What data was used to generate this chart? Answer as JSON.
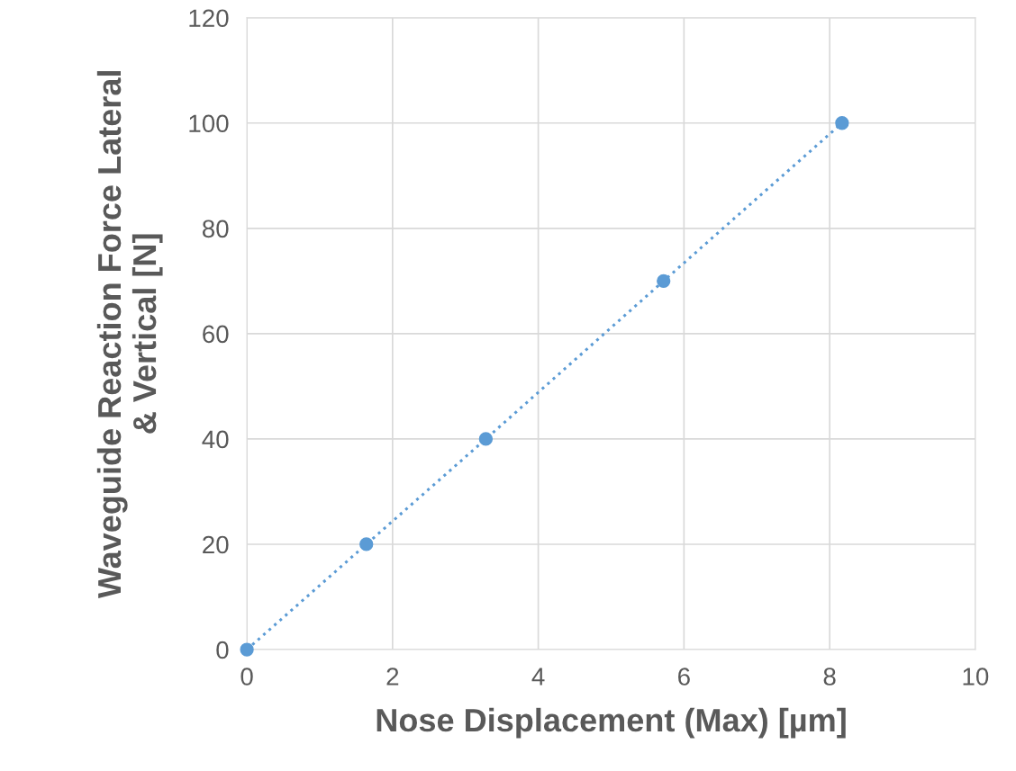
{
  "chart_data": {
    "type": "line",
    "xlabel": "Nose Displacement (Max) [µm]",
    "ylabel": "Waveguide Reaction Force Lateral\n& Vertical [N]",
    "x": [
      0,
      1.64,
      3.28,
      5.72,
      8.17
    ],
    "series": [
      {
        "color": "#5b9bd5",
        "values": [
          0,
          20,
          40,
          70,
          100
        ]
      }
    ],
    "xlim": [
      0,
      10
    ],
    "xticks": [
      0,
      2,
      4,
      6,
      8,
      10
    ],
    "ylim": [
      0,
      120
    ],
    "yticks": [
      0,
      20,
      40,
      60,
      80,
      100,
      120
    ],
    "grid": true,
    "marker": "circle",
    "line_style": "dotted"
  }
}
